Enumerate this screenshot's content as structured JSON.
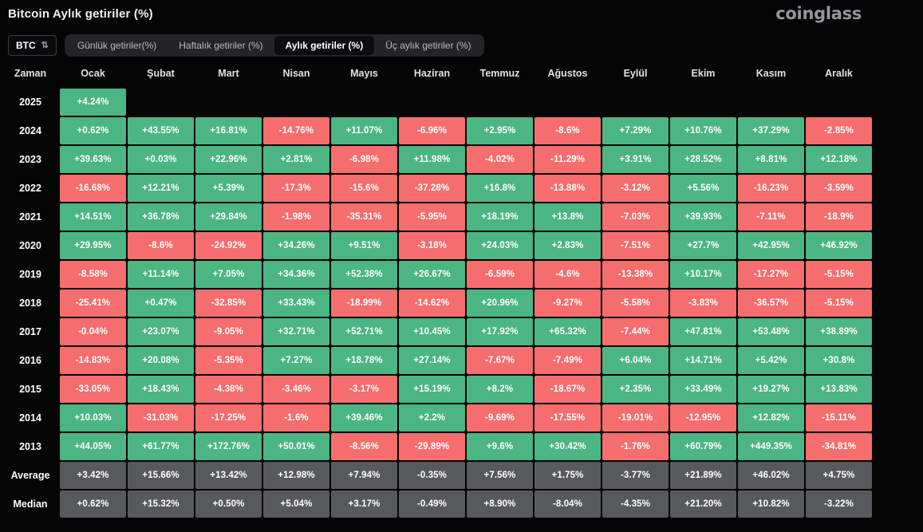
{
  "header": {
    "title": "Bitcoin Aylık getiriler (%)",
    "logo": "coinglass"
  },
  "controls": {
    "symbol_select": {
      "value": "BTC",
      "icon": "updown-arrows"
    },
    "tabs": [
      {
        "label": "Günlük getiriler(%)",
        "active": false
      },
      {
        "label": "Haftalık getiriler (%)",
        "active": false
      },
      {
        "label": "Aylık getiriler (%)",
        "active": true
      },
      {
        "label": "Üç aylık getiriler (%)",
        "active": false
      }
    ]
  },
  "chart_data": {
    "type": "heatmap",
    "title": "Bitcoin Aylık getiriler (%)",
    "columns": [
      "Zaman",
      "Ocak",
      "Şubat",
      "Mart",
      "Nisan",
      "Mayıs",
      "Haziran",
      "Temmuz",
      "Ağustos",
      "Eylül",
      "Ekim",
      "Kasım",
      "Aralık"
    ],
    "rows": [
      {
        "label": "2025",
        "type": "year",
        "values": [
          "+4.24%",
          "",
          "",
          "",
          "",
          "",
          "",
          "",
          "",
          "",
          "",
          ""
        ]
      },
      {
        "label": "2024",
        "type": "year",
        "values": [
          "+0.62%",
          "+43.55%",
          "+16.81%",
          "-14.76%",
          "+11.07%",
          "-6.96%",
          "+2.95%",
          "-8.6%",
          "+7.29%",
          "+10.76%",
          "+37.29%",
          "-2.85%"
        ]
      },
      {
        "label": "2023",
        "type": "year",
        "values": [
          "+39.63%",
          "+0.03%",
          "+22.96%",
          "+2.81%",
          "-6.98%",
          "+11.98%",
          "-4.02%",
          "-11.29%",
          "+3.91%",
          "+28.52%",
          "+8.81%",
          "+12.18%"
        ]
      },
      {
        "label": "2022",
        "type": "year",
        "values": [
          "-16.68%",
          "+12.21%",
          "+5.39%",
          "-17.3%",
          "-15.6%",
          "-37.28%",
          "+16.8%",
          "-13.88%",
          "-3.12%",
          "+5.56%",
          "-16.23%",
          "-3.59%"
        ]
      },
      {
        "label": "2021",
        "type": "year",
        "values": [
          "+14.51%",
          "+36.78%",
          "+29.84%",
          "-1.98%",
          "-35.31%",
          "-5.95%",
          "+18.19%",
          "+13.8%",
          "-7.03%",
          "+39.93%",
          "-7.11%",
          "-18.9%"
        ]
      },
      {
        "label": "2020",
        "type": "year",
        "values": [
          "+29.95%",
          "-8.6%",
          "-24.92%",
          "+34.26%",
          "+9.51%",
          "-3.18%",
          "+24.03%",
          "+2.83%",
          "-7.51%",
          "+27.7%",
          "+42.95%",
          "+46.92%"
        ]
      },
      {
        "label": "2019",
        "type": "year",
        "values": [
          "-8.58%",
          "+11.14%",
          "+7.05%",
          "+34.36%",
          "+52.38%",
          "+26.67%",
          "-6.59%",
          "-4.6%",
          "-13.38%",
          "+10.17%",
          "-17.27%",
          "-5.15%"
        ]
      },
      {
        "label": "2018",
        "type": "year",
        "values": [
          "-25.41%",
          "+0.47%",
          "-32.85%",
          "+33.43%",
          "-18.99%",
          "-14.62%",
          "+20.96%",
          "-9.27%",
          "-5.58%",
          "-3.83%",
          "-36.57%",
          "-5.15%"
        ]
      },
      {
        "label": "2017",
        "type": "year",
        "values": [
          "-0.04%",
          "+23.07%",
          "-9.05%",
          "+32.71%",
          "+52.71%",
          "+10.45%",
          "+17.92%",
          "+65.32%",
          "-7.44%",
          "+47.81%",
          "+53.48%",
          "+38.89%"
        ]
      },
      {
        "label": "2016",
        "type": "year",
        "values": [
          "-14.83%",
          "+20.08%",
          "-5.35%",
          "+7.27%",
          "+18.78%",
          "+27.14%",
          "-7.67%",
          "-7.49%",
          "+6.04%",
          "+14.71%",
          "+5.42%",
          "+30.8%"
        ]
      },
      {
        "label": "2015",
        "type": "year",
        "values": [
          "-33.05%",
          "+18.43%",
          "-4.38%",
          "-3.46%",
          "-3.17%",
          "+15.19%",
          "+8.2%",
          "-18.67%",
          "+2.35%",
          "+33.49%",
          "+19.27%",
          "+13.83%"
        ]
      },
      {
        "label": "2014",
        "type": "year",
        "values": [
          "+10.03%",
          "-31.03%",
          "-17.25%",
          "-1.6%",
          "+39.46%",
          "+2.2%",
          "-9.69%",
          "-17.55%",
          "-19.01%",
          "-12.95%",
          "+12.82%",
          "-15.11%"
        ]
      },
      {
        "label": "2013",
        "type": "year",
        "values": [
          "+44.05%",
          "+61.77%",
          "+172.76%",
          "+50.01%",
          "-8.56%",
          "-29.89%",
          "+9.6%",
          "+30.42%",
          "-1.76%",
          "+60.79%",
          "+449.35%",
          "-34.81%"
        ]
      },
      {
        "label": "Average",
        "type": "summary",
        "values": [
          "+3.42%",
          "+15.66%",
          "+13.42%",
          "+12.98%",
          "+7.94%",
          "-0.35%",
          "+7.56%",
          "+1.75%",
          "-3.77%",
          "+21.89%",
          "+46.02%",
          "+4.75%"
        ]
      },
      {
        "label": "Median",
        "type": "summary",
        "values": [
          "+0.62%",
          "+15.32%",
          "+0.50%",
          "+5.04%",
          "+3.17%",
          "-0.49%",
          "+8.90%",
          "-8.04%",
          "-4.35%",
          "+21.20%",
          "+10.82%",
          "-3.22%"
        ]
      }
    ],
    "colors": {
      "positive": "#4bb583",
      "negative": "#f56d6d",
      "summary": "#58595c",
      "background": "#050505"
    }
  }
}
